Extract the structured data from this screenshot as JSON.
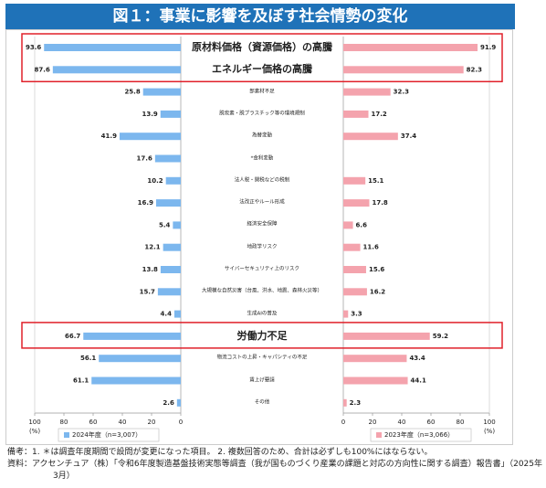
{
  "chart_data": {
    "type": "butterfly_bar",
    "title": "図１：事業に影響を及ぼす社会情勢の変化",
    "categories": [
      "原材料価格（資源価格）の高騰",
      "エネルギー価格の高騰",
      "部素材不足",
      "脱炭素・脱プラスチック等の環境規制",
      "為替変動",
      "*金利変動",
      "法人税・関税などの税制",
      "法改正やルール形成",
      "経済安全保障",
      "地政学リスク",
      "サイバーセキュリティ上のリスク",
      "大規模な自然災害（台風、洪水、地震、森林火災等）",
      "生成AIの普及",
      "労働力不足",
      "物流コストの上昇・キャパシティの不足",
      "賃上げ要請",
      "その他"
    ],
    "series": [
      {
        "name": "2024年度（n=3,007）",
        "color": "#7cb7ee",
        "side": "left",
        "values": [
          93.6,
          87.6,
          25.8,
          13.9,
          41.9,
          17.6,
          10.2,
          16.9,
          5.4,
          12.1,
          13.8,
          15.7,
          4.4,
          66.7,
          56.1,
          61.1,
          2.6
        ]
      },
      {
        "name": "2023年度（n=3,066）",
        "color": "#f4a3ad",
        "side": "right",
        "values": [
          91.9,
          82.3,
          32.3,
          17.2,
          37.4,
          null,
          15.1,
          17.8,
          6.6,
          11.6,
          15.6,
          16.2,
          3.3,
          59.2,
          43.4,
          44.1,
          2.3
        ]
      }
    ],
    "highlight": [
      0,
      1,
      13
    ],
    "xlim": [
      0,
      100
    ],
    "xticks": [
      0,
      20,
      40,
      60,
      80,
      100
    ],
    "x_unit_label": "(%)",
    "notes": [
      "備考：1. ＊は調査年度期間で設問が変更になった項目。 2. 複数回答のため、合計は必ずしも100%にはならない。",
      "資料：アクセンチュア（株）「令和6年度製造基盤技術実態等調査（我が国ものづくり産業の課題と対応の方向性に関する調査）報告書」（2025年3月）"
    ]
  }
}
